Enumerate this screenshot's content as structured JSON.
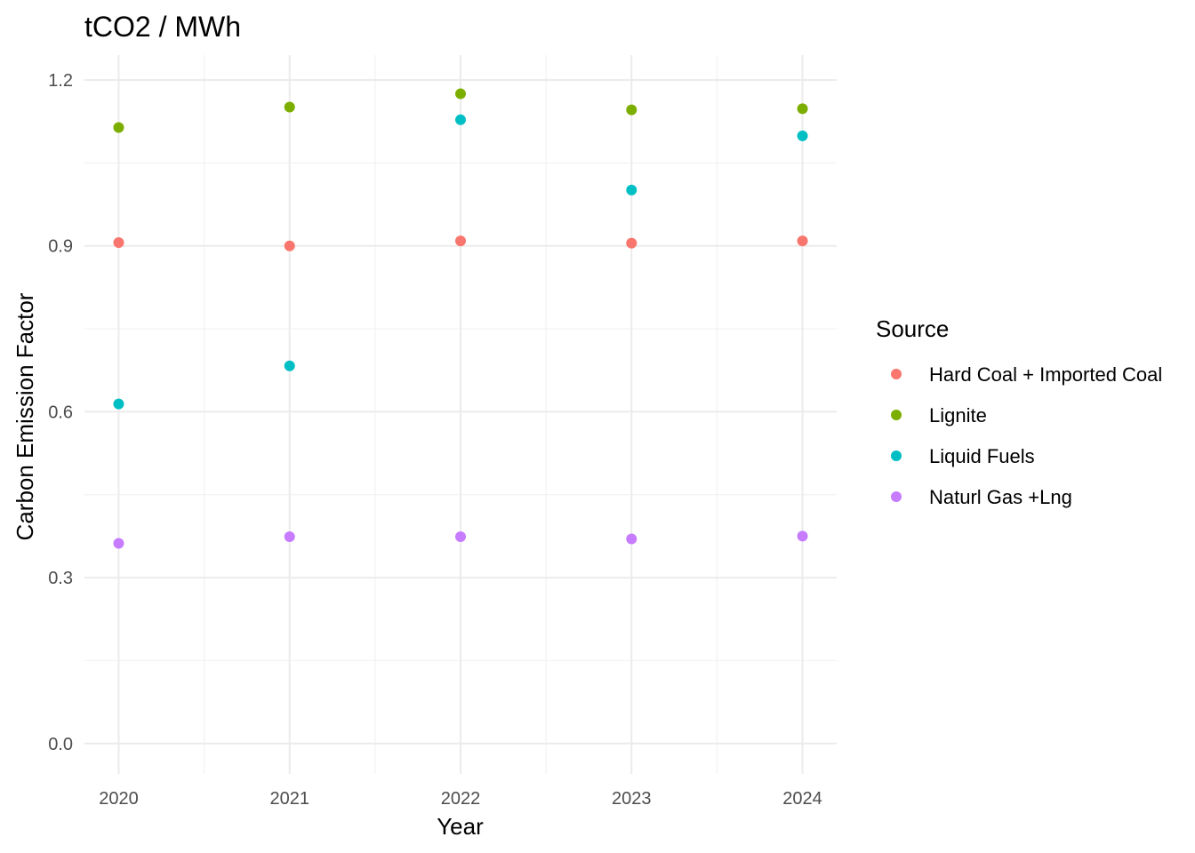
{
  "chart_data": {
    "type": "scatter",
    "title": "tCO2 / MWh",
    "xlabel": "Year",
    "ylabel": "Carbon Emission Factor",
    "x": [
      2020,
      2021,
      2022,
      2023,
      2024
    ],
    "x_ticks": [
      "2020",
      "2021",
      "2022",
      "2023",
      "2024"
    ],
    "y_ticks": [
      "0.0",
      "0.3",
      "0.6",
      "0.9",
      "1.2"
    ],
    "ylim": [
      -0.055,
      1.245
    ],
    "xlim": [
      2019.8,
      2024.2
    ],
    "grid": true,
    "legend": {
      "title": "Source",
      "position": "right"
    },
    "series": [
      {
        "name": "Hard Coal + Imported Coal",
        "color": "#F8766D",
        "values": [
          0.906,
          0.9,
          0.909,
          0.905,
          0.909
        ]
      },
      {
        "name": "Lignite",
        "color": "#7CAE00",
        "values": [
          1.114,
          1.151,
          1.175,
          1.146,
          1.148
        ]
      },
      {
        "name": "Liquid Fuels",
        "color": "#00BFC4",
        "values": [
          0.614,
          0.683,
          1.128,
          1.001,
          1.099
        ]
      },
      {
        "name": "Naturl Gas +Lng",
        "color": "#C77CFF",
        "values": [
          0.362,
          0.374,
          0.374,
          0.37,
          0.375
        ]
      }
    ]
  }
}
